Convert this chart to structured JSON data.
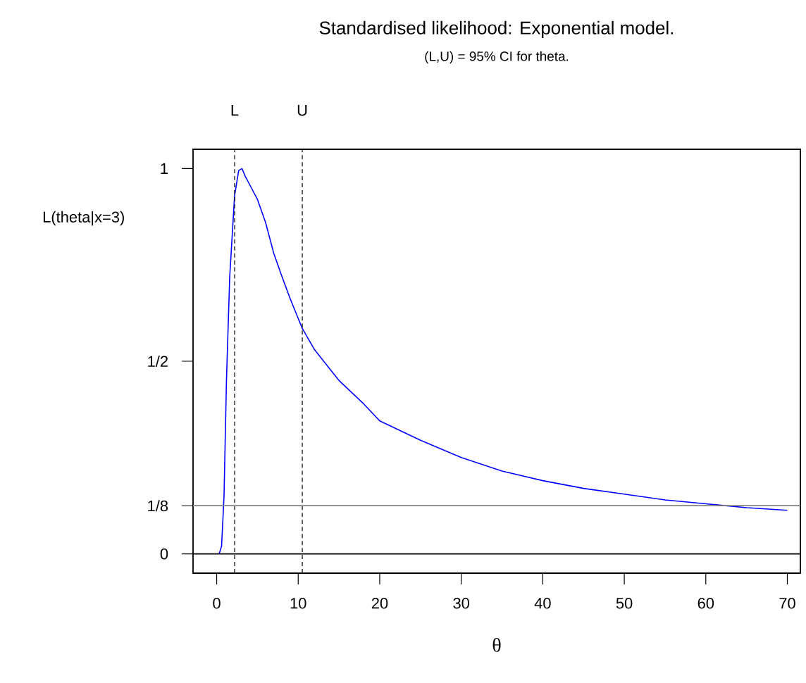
{
  "chart_data": {
    "type": "line",
    "title": "Standardised likelihood: Exponential model.",
    "subtitle": "(L,U) = 95% CI for theta.",
    "xlabel": "θ",
    "ylabel": "L(theta|x=3)",
    "xlim": [
      -2.9,
      71.6
    ],
    "ylim": [
      -0.05,
      1.05
    ],
    "xticks": [
      0,
      10,
      20,
      30,
      40,
      50,
      60,
      70
    ],
    "yticks": [
      {
        "value": 0,
        "label": "0"
      },
      {
        "value": 0.125,
        "label": "1/8"
      },
      {
        "value": 0.5,
        "label": "1/2"
      },
      {
        "value": 1,
        "label": "1"
      }
    ],
    "series": [
      {
        "color": "#0000ff",
        "x": [
          0.3,
          0.6,
          0.9,
          1.2,
          1.6,
          2.2,
          2.7,
          3.1,
          3.5,
          4,
          5,
          6,
          7,
          8,
          9,
          10.5,
          12,
          15,
          18,
          20,
          25,
          30,
          35,
          40,
          45,
          50,
          55,
          60,
          65,
          70
        ],
        "values": [
          0,
          0.02,
          0.15,
          0.45,
          0.72,
          0.93,
          0.995,
          1.0,
          0.98,
          0.96,
          0.92,
          0.86,
          0.78,
          0.72,
          0.663,
          0.585,
          0.53,
          0.45,
          0.39,
          0.345,
          0.295,
          0.25,
          0.215,
          0.19,
          0.17,
          0.155,
          0.14,
          0.13,
          0.12,
          0.113
        ]
      }
    ],
    "ref_lines": [
      {
        "axis": "x",
        "value": 2.2,
        "label": "L",
        "color": "#000000",
        "line_style": "dashed"
      },
      {
        "axis": "x",
        "value": 10.5,
        "label": "U",
        "color": "#000000",
        "line_style": "dashed"
      },
      {
        "axis": "y",
        "value": 0.125,
        "color": "#808080",
        "line_style": "solid"
      },
      {
        "axis": "y",
        "value": 0,
        "color": "#000000",
        "line_style": "solid"
      }
    ]
  }
}
